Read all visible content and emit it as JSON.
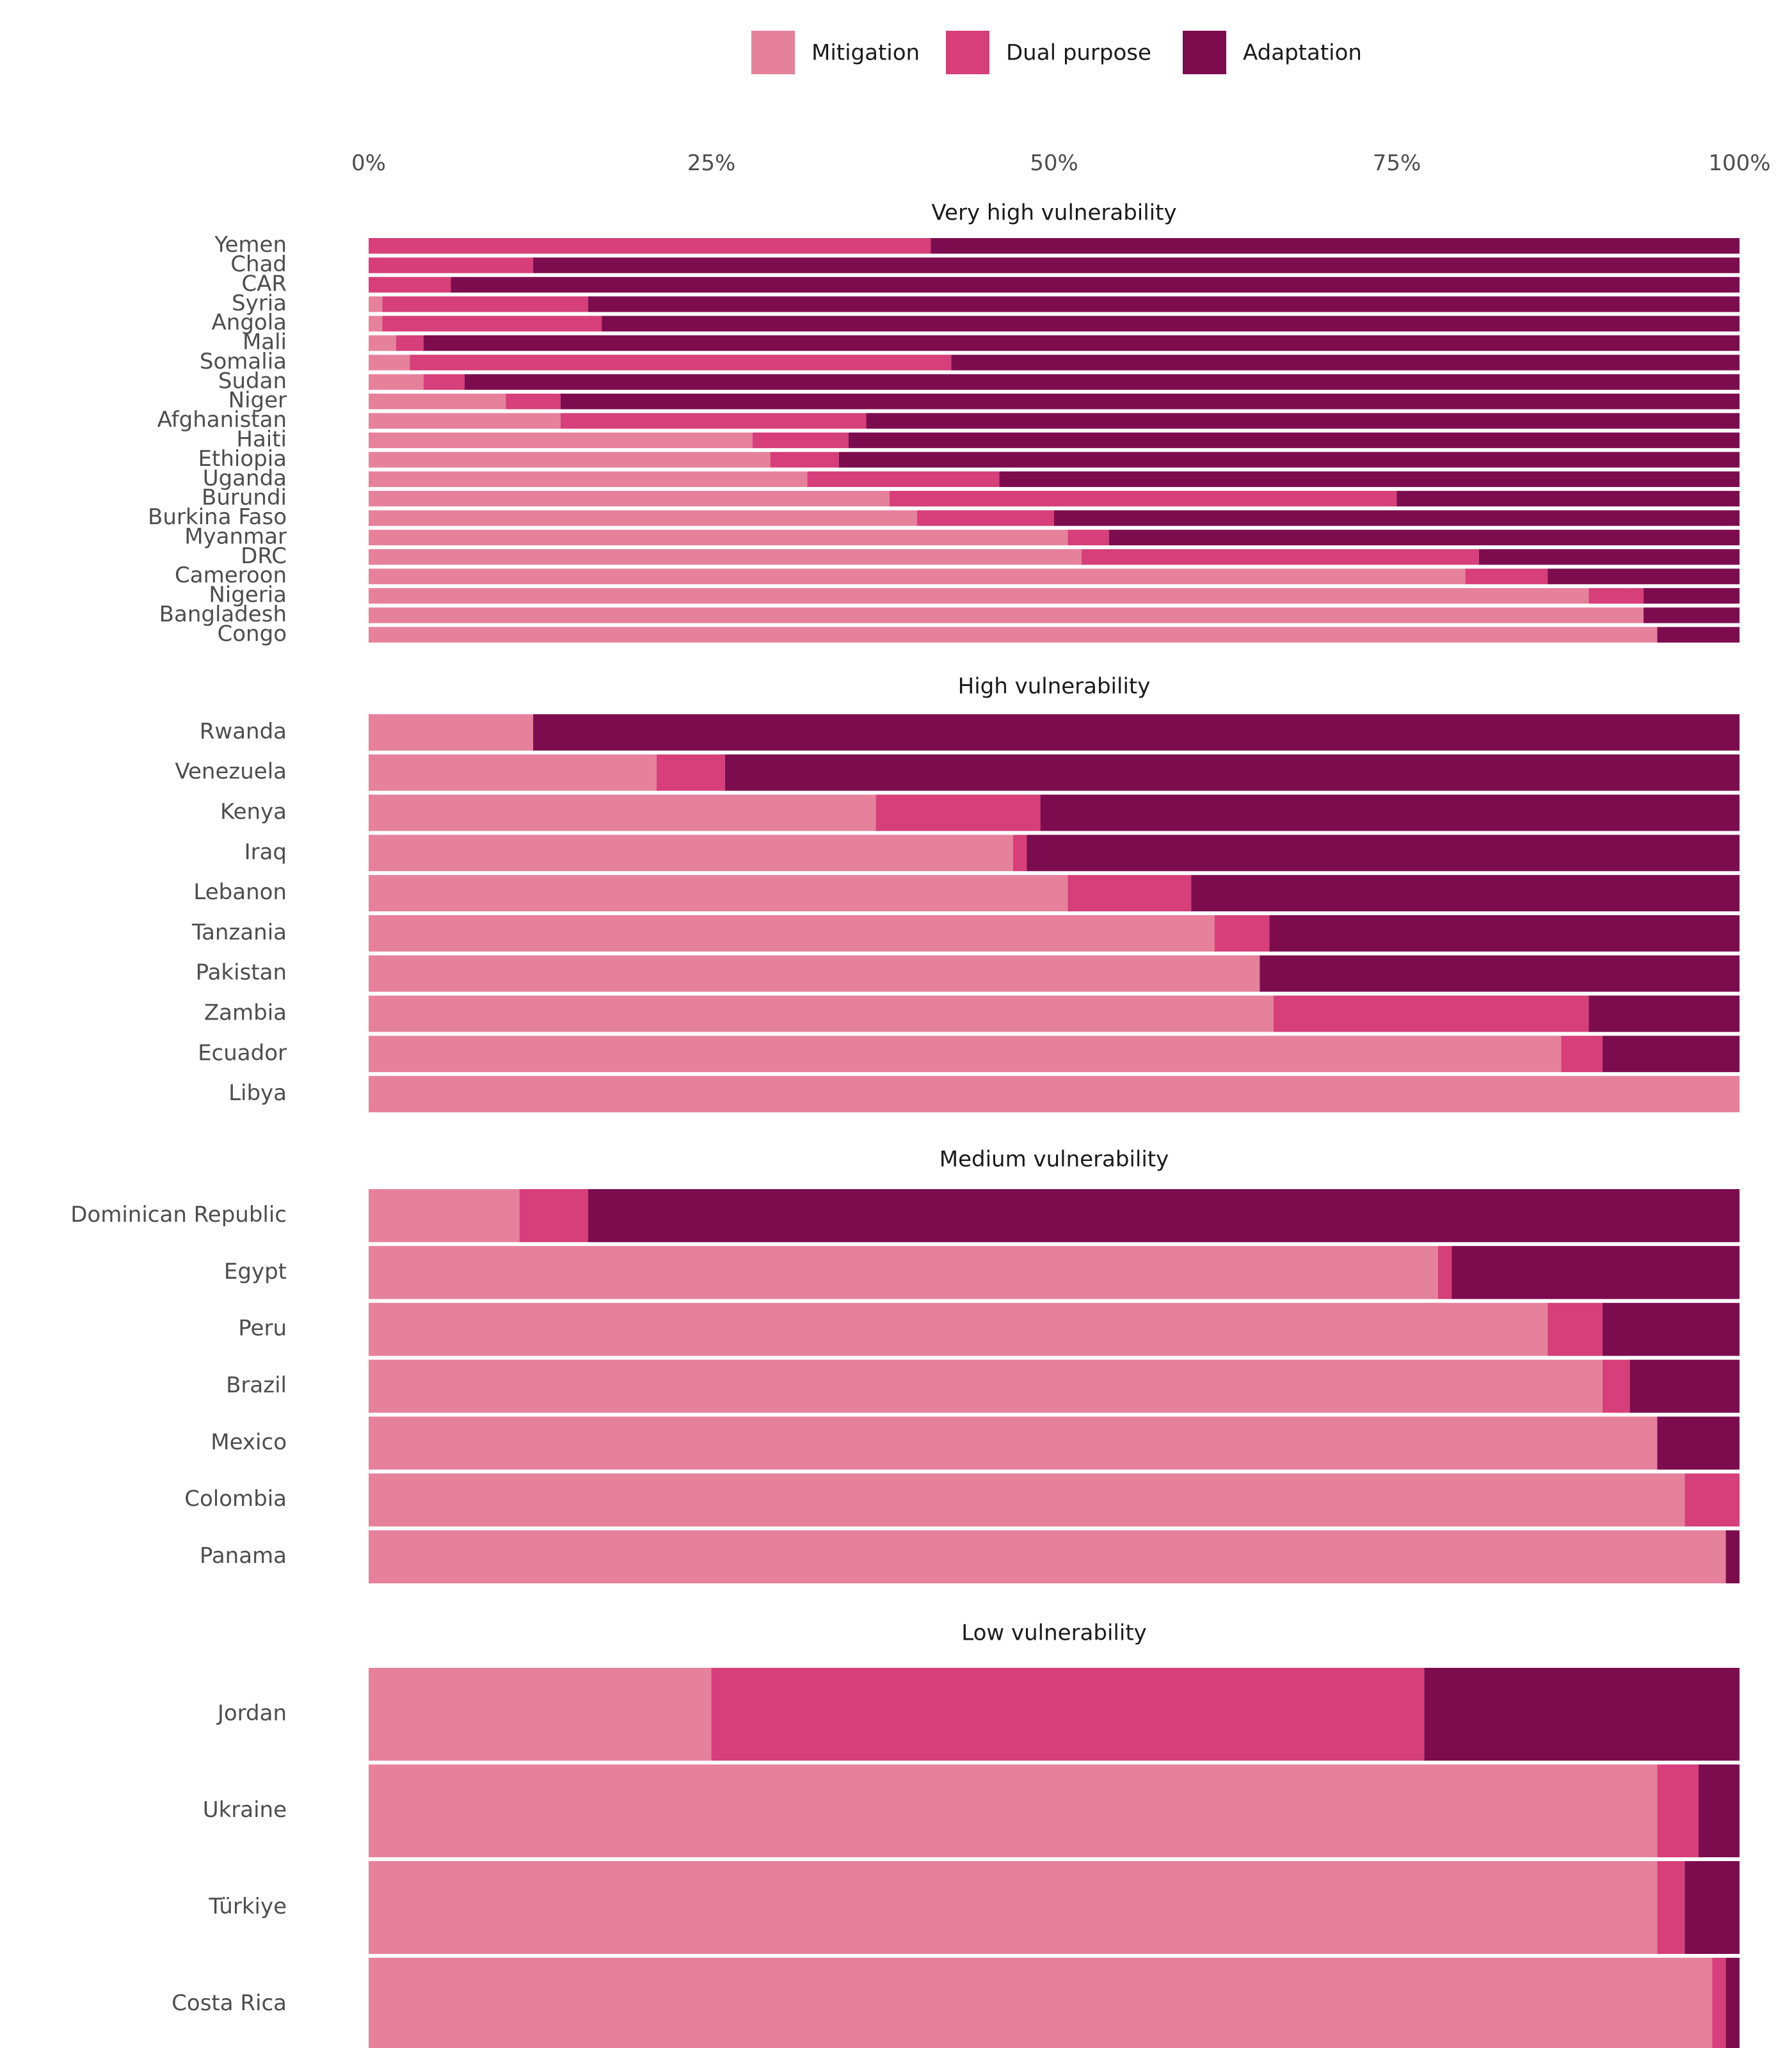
{
  "chart_data": {
    "type": "bar",
    "orientation": "horizontal",
    "stacked": true,
    "normalized": true,
    "xlim": [
      0,
      100
    ],
    "x_ticks": [
      "0%",
      "25%",
      "50%",
      "75%",
      "100%"
    ],
    "grid": false,
    "legend_position": "top",
    "series": [
      {
        "name": "Mitigation",
        "color": "#e6819c"
      },
      {
        "name": "Dual purpose",
        "color": "#d63f79"
      },
      {
        "name": "Adaptation",
        "color": "#7d0c4f"
      }
    ],
    "panels": [
      {
        "title": "Very high vulnerability",
        "rows": [
          {
            "label": "Yemen",
            "values": [
              0,
              41,
              59
            ]
          },
          {
            "label": "Chad",
            "values": [
              0,
              12,
              88
            ]
          },
          {
            "label": "CAR",
            "values": [
              0,
              6,
              94
            ]
          },
          {
            "label": "Syria",
            "values": [
              1,
              15,
              84
            ]
          },
          {
            "label": "Angola",
            "values": [
              1,
              16,
              83
            ]
          },
          {
            "label": "Mali",
            "values": [
              2,
              2,
              96
            ]
          },
          {
            "label": "Somalia",
            "values": [
              3,
              39.5,
              57.5
            ]
          },
          {
            "label": "Sudan",
            "values": [
              4,
              3,
              93
            ]
          },
          {
            "label": "Niger",
            "values": [
              10,
              4,
              86
            ]
          },
          {
            "label": "Afghanistan",
            "values": [
              14,
              22.3,
              63.7
            ]
          },
          {
            "label": "Haiti",
            "values": [
              28,
              7,
              65
            ]
          },
          {
            "label": "Ethiopia",
            "values": [
              29.3,
              5,
              65.7
            ]
          },
          {
            "label": "Uganda",
            "values": [
              32,
              14,
              54
            ]
          },
          {
            "label": "Burundi",
            "values": [
              38,
              37,
              25
            ]
          },
          {
            "label": "Burkina Faso",
            "values": [
              40,
              10,
              50
            ]
          },
          {
            "label": "Myanmar",
            "values": [
              51,
              3,
              46
            ]
          },
          {
            "label": "DRC",
            "values": [
              52,
              29,
              19
            ]
          },
          {
            "label": "Cameroon",
            "values": [
              80,
              6,
              14
            ]
          },
          {
            "label": "Nigeria",
            "values": [
              89,
              4,
              7
            ]
          },
          {
            "label": "Bangladesh",
            "values": [
              93,
              0,
              7
            ]
          },
          {
            "label": "Congo",
            "values": [
              94,
              0,
              6
            ]
          }
        ]
      },
      {
        "title": "High vulnerability",
        "rows": [
          {
            "label": "Rwanda",
            "values": [
              12,
              0,
              88
            ]
          },
          {
            "label": "Venezuela",
            "values": [
              21,
              5,
              74
            ]
          },
          {
            "label": "Kenya",
            "values": [
              37,
              12,
              51
            ]
          },
          {
            "label": "Iraq",
            "values": [
              47,
              1,
              52
            ]
          },
          {
            "label": "Lebanon",
            "values": [
              51,
              9,
              40
            ]
          },
          {
            "label": "Tanzania",
            "values": [
              61.7,
              4,
              34.3
            ]
          },
          {
            "label": "Pakistan",
            "values": [
              65,
              0,
              35
            ]
          },
          {
            "label": "Zambia",
            "values": [
              66,
              23,
              11
            ]
          },
          {
            "label": "Ecuador",
            "values": [
              87,
              3,
              10
            ]
          },
          {
            "label": "Libya",
            "values": [
              100,
              0,
              0
            ]
          }
        ]
      },
      {
        "title": "Medium vulnerability",
        "rows": [
          {
            "label": "Dominican Republic",
            "values": [
              11,
              5,
              84
            ]
          },
          {
            "label": "Egypt",
            "values": [
              78,
              1,
              21
            ]
          },
          {
            "label": "Peru",
            "values": [
              86,
              4,
              10
            ]
          },
          {
            "label": "Brazil",
            "values": [
              90,
              2,
              8
            ]
          },
          {
            "label": "Mexico",
            "values": [
              94,
              0,
              6
            ]
          },
          {
            "label": "Colombia",
            "values": [
              96,
              4,
              0
            ]
          },
          {
            "label": "Panama",
            "values": [
              99,
              0,
              1
            ]
          }
        ]
      },
      {
        "title": "Low vulnerability",
        "rows": [
          {
            "label": "Jordan",
            "values": [
              25,
              52,
              23
            ]
          },
          {
            "label": "Ukraine",
            "values": [
              94,
              3,
              3
            ]
          },
          {
            "label": "Türkiye",
            "values": [
              94,
              2,
              4
            ]
          },
          {
            "label": "Costa Rica",
            "values": [
              98,
              1,
              1
            ]
          }
        ]
      }
    ]
  }
}
